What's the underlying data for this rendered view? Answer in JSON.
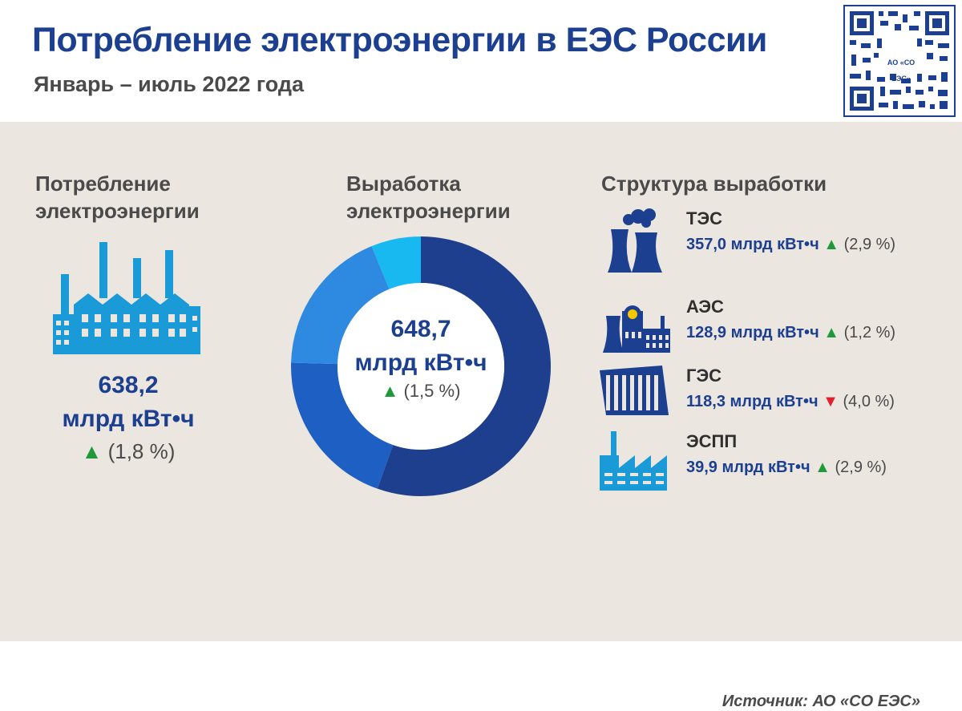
{
  "header": {
    "title": "Потребление электроэнергии в ЕЭС России",
    "subtitle": "Январь – июль 2022 года",
    "qr_badge": "АО «СО ЕЭС»"
  },
  "consumption": {
    "title_line1": "Потребление",
    "title_line2": "электроэнергии",
    "value": "638,2",
    "unit": "млрд кВт•ч",
    "delta": "(1,8 %)",
    "trend": "up"
  },
  "generation": {
    "title_line1": "Выработка",
    "title_line2": "электроэнергии",
    "value": "648,7",
    "unit": "млрд кВт•ч",
    "delta": "(1,5 %)",
    "trend": "up"
  },
  "structure": {
    "title": "Структура выработки",
    "items": [
      {
        "name": "ТЭС",
        "value": "357,0 млрд кВт•ч",
        "delta": "(2,9 %)",
        "trend": "up",
        "icon": "thermal-plant-icon"
      },
      {
        "name": "АЭС",
        "value": "128,9 млрд кВт•ч",
        "delta": "(1,2 %)",
        "trend": "up",
        "icon": "nuclear-plant-icon"
      },
      {
        "name": "ГЭС",
        "value": "118,3 млрд кВт•ч",
        "delta": "(4,0 %)",
        "trend": "down",
        "icon": "hydro-dam-icon"
      },
      {
        "name": "ЭСПП",
        "value": "39,9 млрд кВт•ч",
        "delta": "(2,9 %)",
        "trend": "up",
        "icon": "industrial-plant-icon"
      }
    ]
  },
  "chart_data": {
    "type": "pie",
    "title": "Выработка электроэнергии",
    "categories": [
      "ТЭС",
      "АЭС",
      "ГЭС",
      "ЭСПП"
    ],
    "values": [
      357.0,
      128.9,
      118.3,
      39.9
    ],
    "colors": [
      "#1e3f8e",
      "#1e5fc4",
      "#2d8ae0",
      "#18b8f0"
    ],
    "center_value": "648,7"
  },
  "source": "Источник: АО «СО ЕЭС»",
  "colors": {
    "brand": "#1c3f8f",
    "panel": "#ece6e1",
    "up": "#1f9a3a",
    "down": "#e0202a",
    "icon": "#1a9ad6"
  }
}
